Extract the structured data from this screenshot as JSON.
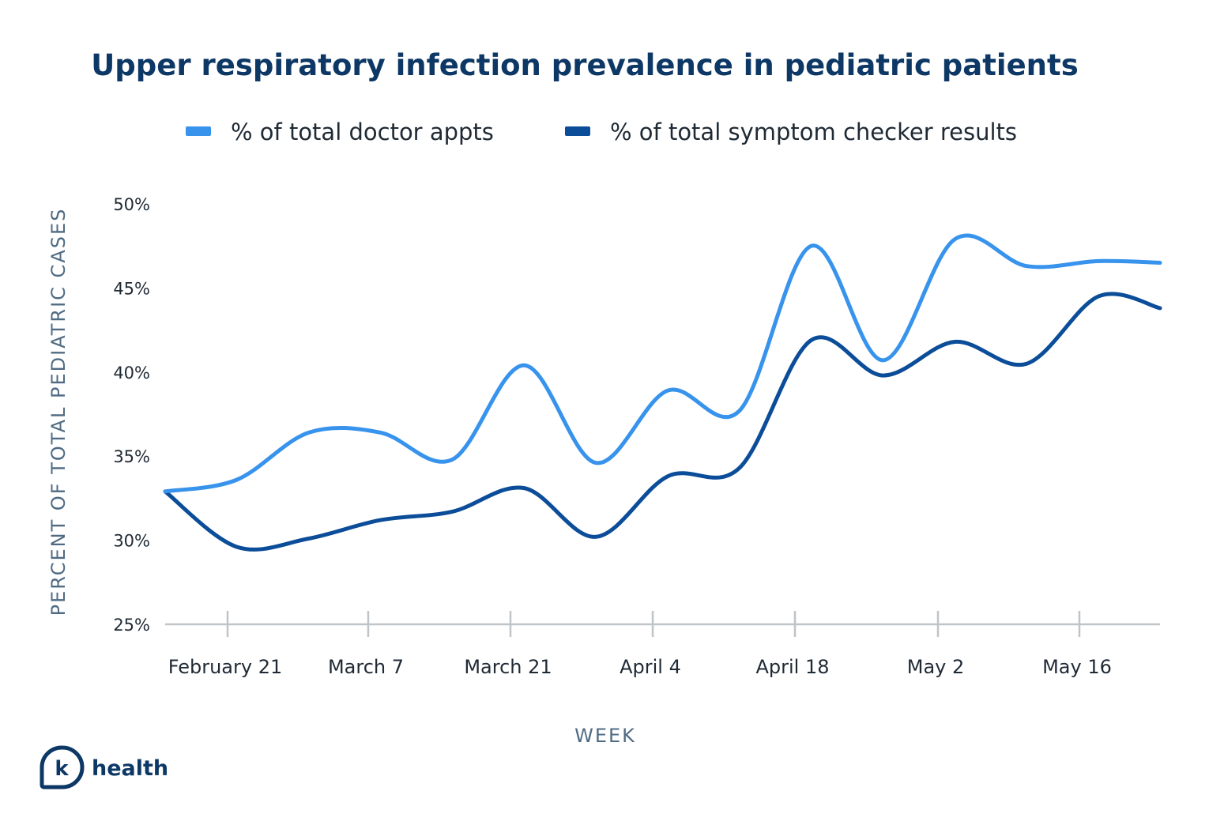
{
  "chart_data": {
    "type": "line",
    "title": "Upper respiratory infection prevalence in pediatric patients",
    "xlabel": "WEEK",
    "ylabel": "PERCENT OF TOTAL PEDIATRIC CASES",
    "ylim": [
      25,
      50
    ],
    "y_ticks": [
      {
        "value": 50,
        "label": "50%"
      },
      {
        "value": 45,
        "label": "45%"
      },
      {
        "value": 40,
        "label": "40%"
      },
      {
        "value": 35,
        "label": "35%"
      },
      {
        "value": 30,
        "label": "30%"
      },
      {
        "value": 25,
        "label": "25%"
      }
    ],
    "x_ticks": [
      "February 21",
      "March 7",
      "March 21",
      "April 4",
      "April 18",
      "May 2",
      "May 16"
    ],
    "xlim": [
      "2020-02-16",
      "2020-05-23"
    ],
    "grid": false,
    "legend_position": "top",
    "series": [
      {
        "name": "% of total doctor appts",
        "color": "#3793ec",
        "x": [
          "2020-02-16",
          "2020-02-23",
          "2020-03-01",
          "2020-03-08",
          "2020-03-15",
          "2020-03-22",
          "2020-03-29",
          "2020-04-05",
          "2020-04-12",
          "2020-04-19",
          "2020-04-26",
          "2020-05-03",
          "2020-05-10",
          "2020-05-17",
          "2020-05-23"
        ],
        "values": [
          32.9,
          33.6,
          36.4,
          36.4,
          34.8,
          40.4,
          34.6,
          38.9,
          37.7,
          47.5,
          40.7,
          47.9,
          46.3,
          46.6,
          46.5
        ]
      },
      {
        "name": "% of total symptom checker results",
        "color": "#0b4d99",
        "x": [
          "2020-02-16",
          "2020-02-23",
          "2020-03-01",
          "2020-03-08",
          "2020-03-15",
          "2020-03-22",
          "2020-03-29",
          "2020-04-05",
          "2020-04-12",
          "2020-04-19",
          "2020-04-26",
          "2020-05-03",
          "2020-05-10",
          "2020-05-17",
          "2020-05-23"
        ],
        "values": [
          32.9,
          29.6,
          30.1,
          31.2,
          31.7,
          33.1,
          30.2,
          33.8,
          34.3,
          41.9,
          39.8,
          41.8,
          40.5,
          44.5,
          43.8
        ]
      }
    ]
  },
  "colors": {
    "title": "#0d3866",
    "axis_label": "#4f6b84",
    "tick_text": "#1f2a35",
    "axis_line": "#bfc4c8",
    "brand": "#0d3866"
  },
  "brand": {
    "icon": "k-speech-bubble-icon",
    "mark": "k",
    "name": "health"
  }
}
